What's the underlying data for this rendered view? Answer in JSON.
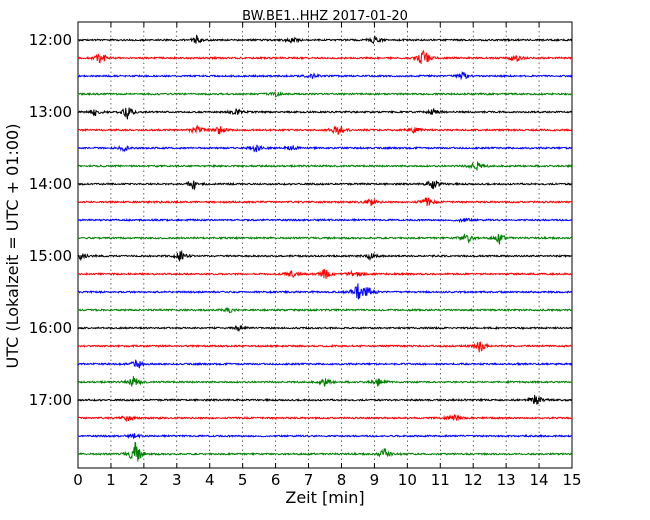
{
  "chart_data": {
    "type": "line",
    "title": "BW.BE1..HHZ 2017-01-20",
    "xlabel": "Zeit  [min]",
    "ylabel": "UTC (Lokalzeit = UTC + 01:00)",
    "xlim": [
      0,
      15
    ],
    "x_ticks": [
      "0",
      "1",
      "2",
      "3",
      "4",
      "5",
      "6",
      "7",
      "8",
      "9",
      "10",
      "11",
      "12",
      "13",
      "14",
      "15"
    ],
    "y_ticks": [
      "12:00",
      "13:00",
      "14:00",
      "15:00",
      "16:00",
      "17:00"
    ],
    "grid": "vertical-dotted",
    "trace_colors": [
      "#000000",
      "#ff0000",
      "#0000ff",
      "#008000"
    ],
    "traces": [
      {
        "start": "12:00",
        "events": [
          [
            3.6,
            0.35
          ],
          [
            6.5,
            0.3
          ],
          [
            9.0,
            0.4
          ]
        ]
      },
      {
        "start": "12:15",
        "events": [
          [
            0.7,
            0.6
          ],
          [
            10.5,
            1.0
          ],
          [
            13.3,
            0.4
          ]
        ]
      },
      {
        "start": "12:30",
        "events": [
          [
            7.1,
            0.3
          ],
          [
            11.7,
            0.4
          ]
        ]
      },
      {
        "start": "12:45",
        "events": [
          [
            6.0,
            0.2
          ]
        ]
      },
      {
        "start": "13:00",
        "events": [
          [
            0.5,
            0.4
          ],
          [
            1.5,
            0.6
          ],
          [
            4.8,
            0.3
          ],
          [
            10.8,
            0.3
          ]
        ]
      },
      {
        "start": "13:15",
        "events": [
          [
            3.6,
            0.5
          ],
          [
            4.3,
            0.4
          ],
          [
            7.9,
            0.7
          ],
          [
            10.2,
            0.3
          ]
        ]
      },
      {
        "start": "13:30",
        "events": [
          [
            1.4,
            0.25
          ],
          [
            5.4,
            0.4
          ],
          [
            6.5,
            0.3
          ]
        ]
      },
      {
        "start": "13:45",
        "events": [
          [
            12.1,
            0.5
          ]
        ]
      },
      {
        "start": "14:00",
        "events": [
          [
            3.5,
            0.5
          ],
          [
            10.8,
            0.5
          ]
        ]
      },
      {
        "start": "14:15",
        "events": [
          [
            8.9,
            0.4
          ],
          [
            10.6,
            0.5
          ]
        ]
      },
      {
        "start": "14:30",
        "events": [
          [
            11.7,
            0.3
          ]
        ]
      },
      {
        "start": "14:45",
        "events": [
          [
            11.8,
            0.6
          ],
          [
            12.8,
            0.45
          ]
        ]
      },
      {
        "start": "15:00",
        "events": [
          [
            0.1,
            0.3
          ],
          [
            3.1,
            0.5
          ],
          [
            8.9,
            0.35
          ]
        ]
      },
      {
        "start": "15:15",
        "events": [
          [
            6.5,
            0.3
          ],
          [
            7.5,
            0.5
          ],
          [
            8.4,
            0.4
          ]
        ]
      },
      {
        "start": "15:30",
        "events": [
          [
            8.5,
            0.8
          ],
          [
            8.8,
            0.5
          ]
        ]
      },
      {
        "start": "15:45",
        "events": [
          [
            4.6,
            0.2
          ]
        ]
      },
      {
        "start": "16:00",
        "events": [
          [
            4.9,
            0.3
          ]
        ]
      },
      {
        "start": "16:15",
        "events": [
          [
            12.2,
            0.6
          ]
        ]
      },
      {
        "start": "16:30",
        "events": [
          [
            1.8,
            0.5
          ]
        ]
      },
      {
        "start": "16:45",
        "events": [
          [
            1.7,
            0.6
          ],
          [
            7.5,
            0.4
          ],
          [
            9.1,
            0.4
          ]
        ]
      },
      {
        "start": "17:00",
        "events": [
          [
            13.9,
            0.55
          ]
        ]
      },
      {
        "start": "17:15",
        "events": [
          [
            1.5,
            0.3
          ],
          [
            11.4,
            0.4
          ]
        ]
      },
      {
        "start": "17:30",
        "events": [
          [
            1.7,
            0.2
          ]
        ]
      },
      {
        "start": "17:45",
        "events": [
          [
            1.75,
            1.2
          ],
          [
            9.3,
            0.5
          ]
        ]
      }
    ]
  }
}
